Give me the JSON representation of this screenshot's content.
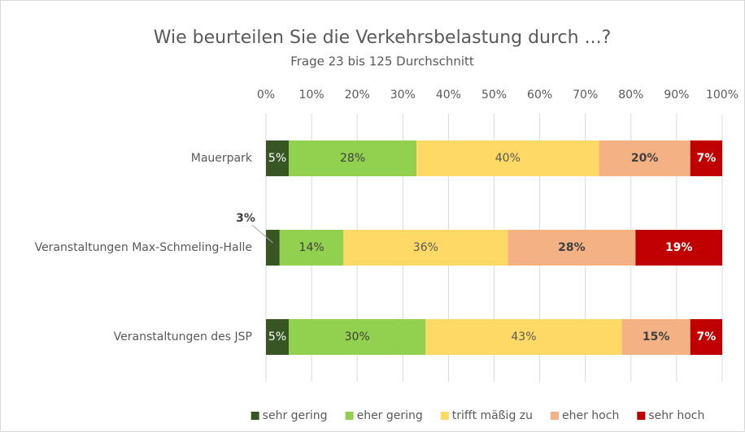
{
  "chart_data": {
    "type": "stacked_bar_horizontal",
    "title": "Wie beurteilen Sie die Verkehrsbelastung  durch ...?",
    "subtitle": "Frage 23 bis 125 Durchschnitt",
    "categories": [
      "Mauerpark",
      "Veranstaltungen Max-Schmeling-Halle",
      "Veranstaltungen des JSP"
    ],
    "series": [
      {
        "name": "sehr gering",
        "color": "#375623",
        "values": [
          5,
          3,
          5
        ],
        "value_labels": [
          "5%",
          "3%",
          "5%"
        ]
      },
      {
        "name": "eher gering",
        "color": "#92d050",
        "values": [
          28,
          14,
          30
        ],
        "value_labels": [
          "28%",
          "14%",
          "30%"
        ]
      },
      {
        "name": "trifft mäßig zu",
        "color": "#ffd966",
        "values": [
          40,
          36,
          43
        ],
        "value_labels": [
          "40%",
          "36%",
          "43%"
        ]
      },
      {
        "name": "eher hoch",
        "color": "#f4b183",
        "values": [
          20,
          28,
          15
        ],
        "value_labels": [
          "20%",
          "28%",
          "15%"
        ]
      },
      {
        "name": "sehr hoch",
        "color": "#c00000",
        "values": [
          7,
          19,
          7
        ],
        "value_labels": [
          "7%",
          "19%",
          "7%"
        ]
      }
    ],
    "xlim": [
      0,
      100
    ],
    "xticks": [
      {
        "value": 0,
        "label": "0%"
      },
      {
        "value": 10,
        "label": "10%"
      },
      {
        "value": 20,
        "label": "20%"
      },
      {
        "value": 30,
        "label": "30%"
      },
      {
        "value": 40,
        "label": "40%"
      },
      {
        "value": 50,
        "label": "50%"
      },
      {
        "value": 60,
        "label": "60%"
      },
      {
        "value": 70,
        "label": "70%"
      },
      {
        "value": 80,
        "label": "80%"
      },
      {
        "value": 90,
        "label": "90%"
      },
      {
        "value": 100,
        "label": "100%"
      }
    ],
    "grid": true,
    "legend": "bottom"
  }
}
